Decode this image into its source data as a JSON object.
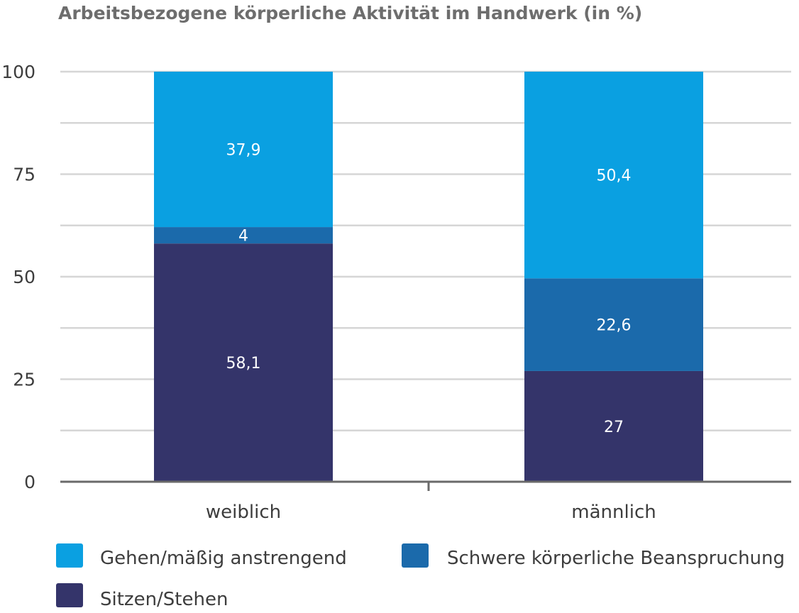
{
  "chart_data": {
    "type": "bar",
    "stacked": true,
    "title": "Arbeitsbezogene körperliche Aktivität im Handwerk (in %)",
    "categories": [
      "weiblich",
      "männlich"
    ],
    "series": [
      {
        "name": "Sitzen/Stehen",
        "color": "#34346a",
        "values": [
          58.1,
          27
        ],
        "labels": [
          "58,1",
          "27"
        ]
      },
      {
        "name": "Schwere körperliche Beanspruchung",
        "color": "#1b6aab",
        "values": [
          4,
          22.6
        ],
        "labels": [
          "4",
          "22,6"
        ]
      },
      {
        "name": "Gehen/mäßig anstrengend",
        "color": "#0aa0e1",
        "values": [
          37.9,
          50.4
        ],
        "labels": [
          "37,9",
          "50,4"
        ]
      }
    ],
    "ylim": [
      0,
      100
    ],
    "yticks": [
      0,
      25,
      50,
      75,
      100
    ],
    "ytick_labels": [
      "0",
      "25",
      "50",
      "75",
      "100"
    ],
    "grid": true,
    "legend": {
      "placement": "bottom",
      "order": [
        "Gehen/mäßig anstrengend",
        "Schwere körperliche Beanspruchung",
        "Sitzen/Stehen"
      ]
    }
  }
}
